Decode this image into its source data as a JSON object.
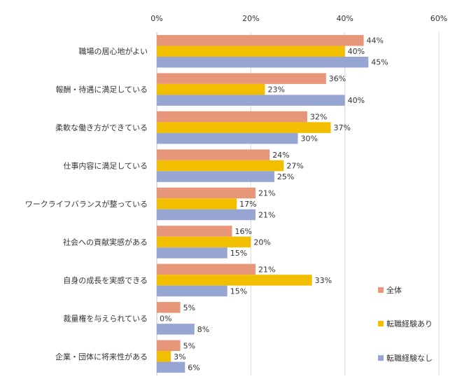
{
  "chart_data": {
    "type": "bar",
    "orientation": "horizontal",
    "xlim": [
      0,
      60
    ],
    "x_ticks": [
      0,
      20,
      40,
      60
    ],
    "tick_labels": [
      "0%",
      "20%",
      "40%",
      "60%"
    ],
    "grid": true,
    "legend_position": "bottom-right",
    "categories": [
      "職場の居心地がよい",
      "報酬・待遇に満足している",
      "柔軟な働き方ができている",
      "仕事内容に満足している",
      "ワークライフバランスが整っている",
      "社会への貢献実感がある",
      "自身の成長を実感できる",
      "裁量権を与えられている",
      "企業・団体に将来性がある"
    ],
    "series": [
      {
        "name": "全体",
        "color": "#E8967A",
        "values": [
          44,
          36,
          32,
          24,
          21,
          16,
          21,
          5,
          5
        ]
      },
      {
        "name": "転職経験あり",
        "color": "#F2BE00",
        "values": [
          40,
          23,
          37,
          27,
          17,
          20,
          33,
          0,
          3
        ]
      },
      {
        "name": "転職経験なし",
        "color": "#97A5D3",
        "values": [
          45,
          40,
          30,
          25,
          21,
          15,
          15,
          8,
          6
        ]
      }
    ]
  }
}
